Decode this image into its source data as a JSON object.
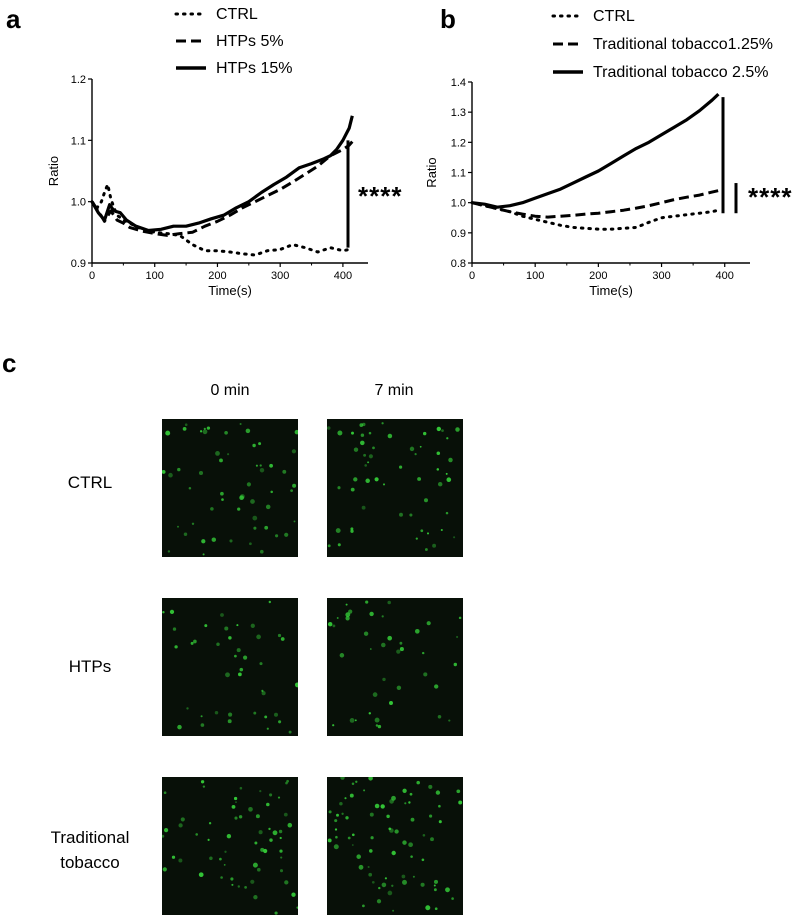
{
  "panels": {
    "a": {
      "letter": "a"
    },
    "b": {
      "letter": "b"
    },
    "c": {
      "letter": "c"
    }
  },
  "chart_data": [
    {
      "type": "line",
      "panel": "a",
      "title": "",
      "xlabel": "Time(s)",
      "ylabel": "Ratio",
      "xlim": [
        0,
        440
      ],
      "ylim": [
        0.9,
        1.2
      ],
      "x_ticks": [
        "0",
        "100",
        "200",
        "300",
        "400"
      ],
      "y_ticks": [
        "0.9",
        "1.0",
        "1.1",
        "1.2"
      ],
      "legend_position": "top",
      "grid": false,
      "significance": "****",
      "series": [
        {
          "name": "CTRL",
          "style": "dotted",
          "x": [
            0,
            8,
            15,
            20,
            25,
            30,
            35,
            40,
            50,
            60,
            70,
            80,
            90,
            100,
            120,
            140,
            160,
            180,
            200,
            220,
            240,
            260,
            280,
            300,
            320,
            340,
            360,
            380,
            400,
            410,
            415
          ],
          "y": [
            1.0,
            0.99,
            1.0,
            1.015,
            1.028,
            1.005,
            0.99,
            0.978,
            0.97,
            0.965,
            0.96,
            0.955,
            0.953,
            0.95,
            0.948,
            0.945,
            0.93,
            0.92,
            0.92,
            0.918,
            0.915,
            0.913,
            0.92,
            0.922,
            0.93,
            0.925,
            0.918,
            0.925,
            0.92,
            0.922,
            0.925
          ]
        },
        {
          "name": "HTPs 5%",
          "style": "dashed",
          "x": [
            0,
            10,
            20,
            30,
            40,
            50,
            60,
            80,
            100,
            120,
            140,
            160,
            180,
            200,
            220,
            240,
            260,
            280,
            300,
            320,
            340,
            360,
            380,
            400,
            410,
            415
          ],
          "y": [
            1.0,
            0.985,
            0.968,
            0.985,
            0.97,
            0.965,
            0.958,
            0.952,
            0.948,
            0.945,
            0.948,
            0.95,
            0.96,
            0.968,
            0.978,
            0.99,
            1.0,
            1.01,
            1.02,
            1.032,
            1.045,
            1.058,
            1.075,
            1.085,
            1.092,
            1.098
          ]
        },
        {
          "name": "HTPs 15%",
          "style": "solid",
          "x": [
            0,
            10,
            20,
            28,
            35,
            45,
            55,
            70,
            90,
            110,
            130,
            150,
            170,
            190,
            210,
            230,
            250,
            270,
            290,
            310,
            330,
            350,
            370,
            380,
            390,
            400,
            410,
            415
          ],
          "y": [
            1.0,
            0.982,
            0.97,
            0.995,
            0.985,
            0.982,
            0.97,
            0.96,
            0.953,
            0.955,
            0.96,
            0.96,
            0.965,
            0.972,
            0.978,
            0.99,
            1.0,
            1.015,
            1.028,
            1.04,
            1.055,
            1.062,
            1.07,
            1.075,
            1.085,
            1.1,
            1.12,
            1.14
          ]
        }
      ]
    },
    {
      "type": "line",
      "panel": "b",
      "title": "",
      "xlabel": "Time(s)",
      "ylabel": "Ratio",
      "xlim": [
        0,
        440
      ],
      "ylim": [
        0.8,
        1.4
      ],
      "x_ticks": [
        "0",
        "100",
        "200",
        "300",
        "400"
      ],
      "y_ticks": [
        "0.8",
        "0.9",
        "1.0",
        "1.1",
        "1.2",
        "1.3",
        "1.4"
      ],
      "legend_position": "top",
      "grid": false,
      "significance": "****",
      "series": [
        {
          "name": "CTRL",
          "style": "dotted",
          "x": [
            0,
            20,
            40,
            60,
            80,
            100,
            120,
            140,
            160,
            180,
            200,
            220,
            240,
            260,
            280,
            300,
            320,
            340,
            360,
            380,
            390
          ],
          "y": [
            1.0,
            0.99,
            0.98,
            0.97,
            0.955,
            0.945,
            0.935,
            0.925,
            0.918,
            0.915,
            0.912,
            0.912,
            0.915,
            0.918,
            0.935,
            0.95,
            0.955,
            0.96,
            0.965,
            0.97,
            0.975
          ]
        },
        {
          "name": "Traditional tobacco1.25%",
          "style": "dashed",
          "x": [
            0,
            20,
            40,
            60,
            80,
            100,
            120,
            140,
            160,
            180,
            200,
            220,
            240,
            260,
            280,
            300,
            320,
            340,
            360,
            380,
            390
          ],
          "y": [
            1.0,
            0.99,
            0.98,
            0.97,
            0.962,
            0.955,
            0.952,
            0.955,
            0.958,
            0.962,
            0.965,
            0.97,
            0.975,
            0.982,
            0.99,
            1.0,
            1.01,
            1.018,
            1.025,
            1.035,
            1.04
          ]
        },
        {
          "name": "Traditional tobacco 2.5%",
          "style": "solid",
          "x": [
            0,
            20,
            40,
            60,
            80,
            100,
            120,
            140,
            160,
            180,
            200,
            220,
            240,
            260,
            280,
            300,
            320,
            340,
            360,
            380,
            390
          ],
          "y": [
            1.0,
            0.995,
            0.985,
            0.99,
            1.0,
            1.015,
            1.03,
            1.045,
            1.065,
            1.085,
            1.105,
            1.13,
            1.155,
            1.18,
            1.2,
            1.225,
            1.25,
            1.275,
            1.305,
            1.34,
            1.36
          ]
        }
      ]
    }
  ],
  "micrographs": {
    "columns": [
      "0 min",
      "7 min"
    ],
    "rows": [
      {
        "label": "CTRL",
        "seed": 11,
        "density": 55
      },
      {
        "label": "HTPs",
        "seed": 23,
        "density": 40
      },
      {
        "label": "Traditional tobacco",
        "seed": 37,
        "density": 60
      }
    ],
    "cell_color": "#36d23a",
    "background_color": "#081008"
  }
}
